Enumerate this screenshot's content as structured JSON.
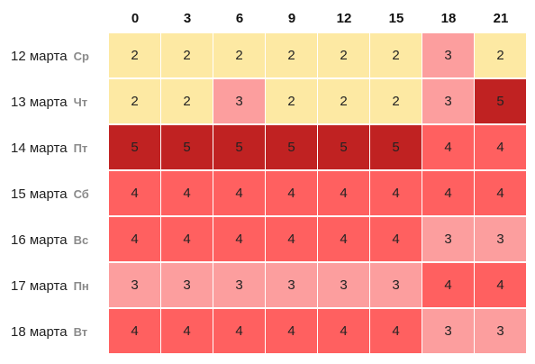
{
  "hours": [
    "0",
    "3",
    "6",
    "9",
    "12",
    "15",
    "18",
    "21"
  ],
  "level_colors": {
    "2": "#fde9a3",
    "3": "#fc9e9e",
    "4": "#ff6060",
    "5": "#c02222"
  },
  "rows": [
    {
      "date": "12 марта",
      "dow": "Ср",
      "values": [
        2,
        2,
        2,
        2,
        2,
        2,
        3,
        2
      ]
    },
    {
      "date": "13 марта",
      "dow": "Чт",
      "values": [
        2,
        2,
        3,
        2,
        2,
        2,
        3,
        5
      ]
    },
    {
      "date": "14 марта",
      "dow": "Пт",
      "values": [
        5,
        5,
        5,
        5,
        5,
        5,
        4,
        4
      ]
    },
    {
      "date": "15 марта",
      "dow": "Сб",
      "values": [
        4,
        4,
        4,
        4,
        4,
        4,
        4,
        4
      ]
    },
    {
      "date": "16 марта",
      "dow": "Вс",
      "values": [
        4,
        4,
        4,
        4,
        4,
        4,
        3,
        3
      ]
    },
    {
      "date": "17 марта",
      "dow": "Пн",
      "values": [
        3,
        3,
        3,
        3,
        3,
        3,
        4,
        4
      ]
    },
    {
      "date": "18 марта",
      "dow": "Вт",
      "values": [
        4,
        4,
        4,
        4,
        4,
        4,
        3,
        3
      ]
    }
  ]
}
